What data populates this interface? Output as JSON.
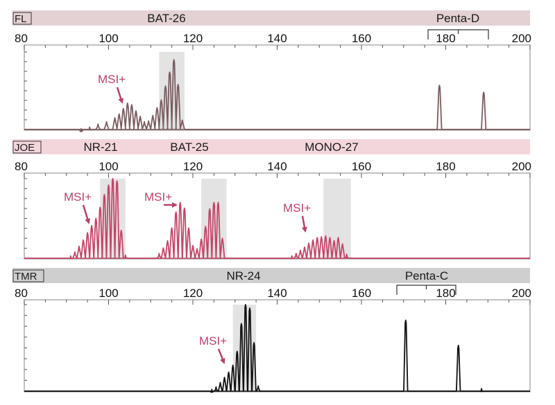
{
  "chart_data": [
    {
      "type": "line",
      "channel": "FL",
      "markers": [
        "BAT-26",
        "Penta-D"
      ],
      "colors": {
        "band": "#e3d1d3",
        "trace": "#7a5c5f",
        "window": "#e4e3e3",
        "annotation": "#b8416c"
      },
      "x_ticks": [
        "80",
        "100",
        "120",
        "140",
        "160",
        "180",
        "200"
      ],
      "xlim": [
        80,
        200
      ],
      "ylim": [
        0,
        1
      ],
      "grid": false,
      "bracket_tick": "180",
      "shaded_windows": [
        [
          112,
          118
        ]
      ],
      "annotations": [
        {
          "text": "MSI+",
          "x": 104.5,
          "y": 0.36
        }
      ],
      "peaks": [
        {
          "x": 93.5,
          "y": 0.01
        },
        {
          "x": 95.5,
          "y": 0.03
        },
        {
          "x": 97.5,
          "y": 0.07
        },
        {
          "x": 99.5,
          "y": 0.1
        },
        {
          "x": 101.5,
          "y": 0.15
        },
        {
          "x": 102.5,
          "y": 0.2
        },
        {
          "x": 103.5,
          "y": 0.27
        },
        {
          "x": 104.5,
          "y": 0.34
        },
        {
          "x": 105.5,
          "y": 0.32
        },
        {
          "x": 106.5,
          "y": 0.24
        },
        {
          "x": 107.5,
          "y": 0.17
        },
        {
          "x": 108.5,
          "y": 0.1
        },
        {
          "x": 109.5,
          "y": 0.11
        },
        {
          "x": 110.5,
          "y": 0.18
        },
        {
          "x": 111.5,
          "y": 0.28
        },
        {
          "x": 112.5,
          "y": 0.38
        },
        {
          "x": 113.5,
          "y": 0.56
        },
        {
          "x": 114.5,
          "y": 0.74
        },
        {
          "x": 115.5,
          "y": 0.9
        },
        {
          "x": 116.5,
          "y": 0.58
        },
        {
          "x": 117.5,
          "y": 0.12
        },
        {
          "x": 178.5,
          "y": 0.57
        },
        {
          "x": 189,
          "y": 0.48
        }
      ]
    },
    {
      "type": "line",
      "channel": "JOE",
      "markers": [
        "NR-21",
        "BAT-25",
        "MONO-27"
      ],
      "colors": {
        "band": "#f3d6dc",
        "trace": "#c34568",
        "window": "#e4e3e3",
        "annotation": "#b8416c"
      },
      "x_ticks": [
        "80",
        "100",
        "120",
        "140",
        "160",
        "180",
        "200"
      ],
      "xlim": [
        80,
        200
      ],
      "ylim": [
        0,
        1
      ],
      "grid": false,
      "shaded_windows": [
        [
          98,
          104
        ],
        [
          122,
          128
        ],
        [
          151,
          157.5
        ]
      ],
      "annotations": [
        {
          "text": "MSI+",
          "x": 96.5,
          "y": 0.42
        },
        {
          "text": "MSI+",
          "x": 117.5,
          "y": 0.6
        },
        {
          "text": "MSI+",
          "x": 147,
          "y": 0.29
        }
      ],
      "peaks": [
        {
          "x": 91,
          "y": 0.03
        },
        {
          "x": 92,
          "y": 0.08
        },
        {
          "x": 93,
          "y": 0.15
        },
        {
          "x": 94,
          "y": 0.23
        },
        {
          "x": 95,
          "y": 0.32
        },
        {
          "x": 96,
          "y": 0.41
        },
        {
          "x": 97,
          "y": 0.5
        },
        {
          "x": 98,
          "y": 0.64
        },
        {
          "x": 99,
          "y": 0.8
        },
        {
          "x": 100,
          "y": 0.92
        },
        {
          "x": 101,
          "y": 1.0
        },
        {
          "x": 102,
          "y": 0.97
        },
        {
          "x": 103,
          "y": 0.35
        },
        {
          "x": 104,
          "y": 0.04
        },
        {
          "x": 112,
          "y": 0.06
        },
        {
          "x": 113,
          "y": 0.13
        },
        {
          "x": 114,
          "y": 0.22
        },
        {
          "x": 115,
          "y": 0.38
        },
        {
          "x": 116,
          "y": 0.58
        },
        {
          "x": 117,
          "y": 0.7
        },
        {
          "x": 118,
          "y": 0.63
        },
        {
          "x": 119,
          "y": 0.38
        },
        {
          "x": 120,
          "y": 0.16
        },
        {
          "x": 121,
          "y": 0.12
        },
        {
          "x": 122,
          "y": 0.24
        },
        {
          "x": 123,
          "y": 0.4
        },
        {
          "x": 124,
          "y": 0.62
        },
        {
          "x": 125,
          "y": 0.7
        },
        {
          "x": 126,
          "y": 0.7
        },
        {
          "x": 127,
          "y": 0.25
        },
        {
          "x": 143.5,
          "y": 0.03
        },
        {
          "x": 144.5,
          "y": 0.06
        },
        {
          "x": 145.5,
          "y": 0.1
        },
        {
          "x": 146.5,
          "y": 0.14
        },
        {
          "x": 147.5,
          "y": 0.19
        },
        {
          "x": 148.5,
          "y": 0.23
        },
        {
          "x": 149.5,
          "y": 0.26
        },
        {
          "x": 150.5,
          "y": 0.27
        },
        {
          "x": 151.5,
          "y": 0.28
        },
        {
          "x": 152.5,
          "y": 0.26
        },
        {
          "x": 153.5,
          "y": 0.22
        },
        {
          "x": 154.5,
          "y": 0.26
        },
        {
          "x": 155.5,
          "y": 0.18
        },
        {
          "x": 156.5,
          "y": 0.05
        }
      ]
    },
    {
      "type": "line",
      "channel": "TMR",
      "markers": [
        "NR-24",
        "Penta-C"
      ],
      "colors": {
        "band": "#cfcfcf",
        "trace": "#111111",
        "window": "#e4e3e3",
        "annotation": "#b8416c"
      },
      "x_ticks": [
        "80",
        "100",
        "120",
        "140",
        "160",
        "180",
        "200"
      ],
      "xlim": [
        80,
        200
      ],
      "ylim": [
        0,
        1
      ],
      "grid": false,
      "bracket_tick": "180",
      "shaded_windows": [
        [
          129.5,
          135
        ]
      ],
      "annotations": [
        {
          "text": "MSI+",
          "x": 129.5,
          "y": 0.28
        }
      ],
      "peaks": [
        {
          "x": 124.5,
          "y": 0.02
        },
        {
          "x": 125.5,
          "y": 0.05
        },
        {
          "x": 126.5,
          "y": 0.1
        },
        {
          "x": 127.5,
          "y": 0.16
        },
        {
          "x": 128.5,
          "y": 0.22
        },
        {
          "x": 129.5,
          "y": 0.3
        },
        {
          "x": 130.5,
          "y": 0.46
        },
        {
          "x": 131.5,
          "y": 0.78
        },
        {
          "x": 132.5,
          "y": 1.0
        },
        {
          "x": 133.5,
          "y": 0.96
        },
        {
          "x": 134.5,
          "y": 0.56
        },
        {
          "x": 135.5,
          "y": 0.06
        },
        {
          "x": 170.5,
          "y": 0.82
        },
        {
          "x": 183,
          "y": 0.53
        },
        {
          "x": 188.5,
          "y": 0.03
        }
      ]
    }
  ]
}
